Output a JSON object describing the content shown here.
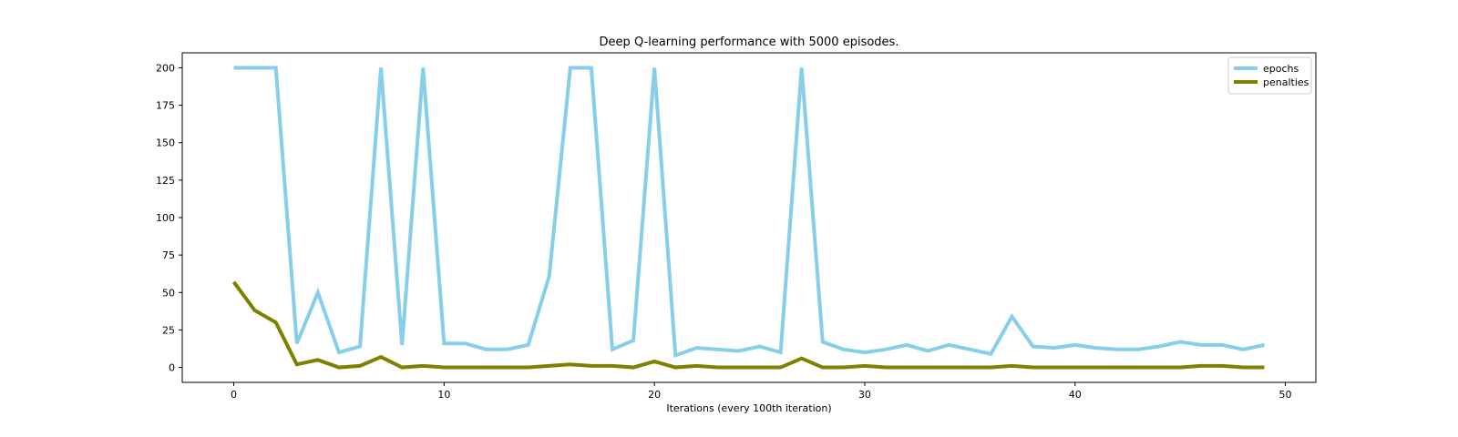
{
  "chart_data": {
    "type": "line",
    "title": "Deep Q-learning performance with 5000 episodes.",
    "xlabel": "Iterations (every 100th iteration)",
    "ylabel": "",
    "xlim": [
      -2.45,
      51.45
    ],
    "ylim": [
      -10,
      210
    ],
    "xticks": [
      0,
      10,
      20,
      30,
      40,
      50
    ],
    "yticks": [
      0,
      25,
      50,
      75,
      100,
      125,
      150,
      175,
      200
    ],
    "legend_position": "top-right",
    "grid": false,
    "x": [
      0,
      1,
      2,
      3,
      4,
      5,
      6,
      7,
      8,
      9,
      10,
      11,
      12,
      13,
      14,
      15,
      16,
      17,
      18,
      19,
      20,
      21,
      22,
      23,
      24,
      25,
      26,
      27,
      28,
      29,
      30,
      31,
      32,
      33,
      34,
      35,
      36,
      37,
      38,
      39,
      40,
      41,
      42,
      43,
      44,
      45,
      46,
      47,
      48,
      49
    ],
    "series": [
      {
        "name": "epochs",
        "color": "#87ceeb",
        "values": [
          200,
          200,
          200,
          16,
          50,
          10,
          14,
          200,
          15,
          200,
          16,
          16,
          12,
          12,
          15,
          61,
          200,
          200,
          12,
          18,
          200,
          8,
          13,
          12,
          11,
          14,
          10,
          200,
          17,
          12,
          10,
          12,
          15,
          11,
          15,
          12,
          9,
          34,
          14,
          13,
          15,
          13,
          12,
          12,
          14,
          17,
          15,
          15,
          12,
          15
        ]
      },
      {
        "name": "penalties",
        "color": "#808000",
        "values": [
          57,
          38,
          30,
          2,
          5,
          0,
          1,
          7,
          0,
          1,
          0,
          0,
          0,
          0,
          0,
          1,
          2,
          1,
          1,
          0,
          4,
          0,
          1,
          0,
          0,
          0,
          0,
          6,
          0,
          0,
          1,
          0,
          0,
          0,
          0,
          0,
          0,
          1,
          0,
          0,
          0,
          0,
          0,
          0,
          0,
          0,
          1,
          1,
          0,
          0
        ]
      }
    ]
  }
}
